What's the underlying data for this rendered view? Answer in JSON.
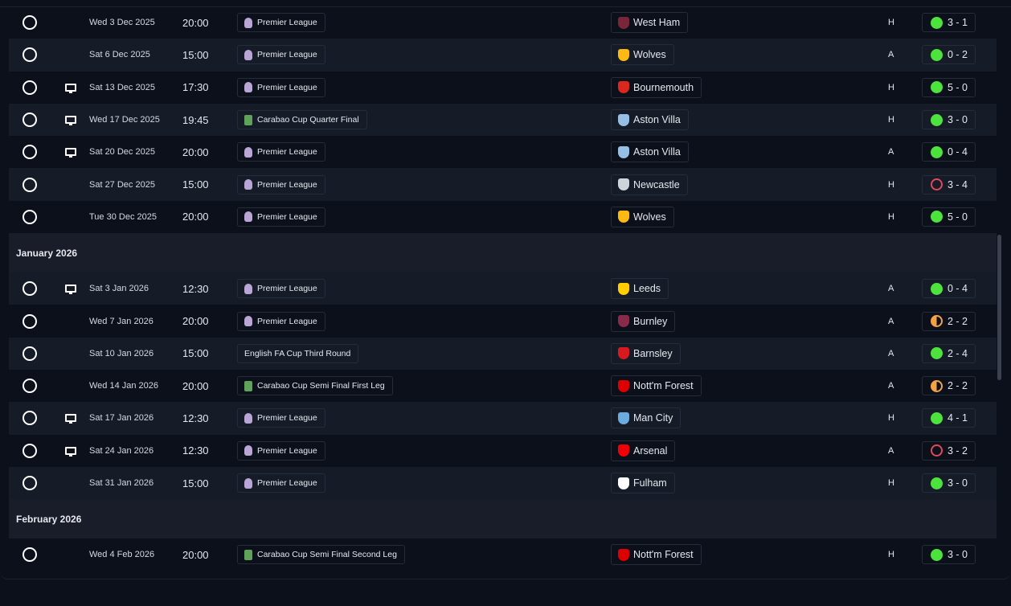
{
  "sections": [
    {
      "title": "",
      "matches": [
        {
          "date": "Wed 3 Dec 2025",
          "time": "20:00",
          "competition": "Premier League",
          "comp_icon": "premier-league",
          "tv": false,
          "opponent": "West Ham",
          "crest_color": "#7a263a",
          "venue": "H",
          "result": "W",
          "score": "3 - 1"
        },
        {
          "date": "Sat 6 Dec 2025",
          "time": "15:00",
          "competition": "Premier League",
          "comp_icon": "premier-league",
          "tv": false,
          "opponent": "Wolves",
          "crest_color": "#fdb913",
          "venue": "A",
          "result": "W",
          "score": "0 - 2"
        },
        {
          "date": "Sat 13 Dec 2025",
          "time": "17:30",
          "competition": "Premier League",
          "comp_icon": "premier-league",
          "tv": true,
          "opponent": "Bournemouth",
          "crest_color": "#da291c",
          "venue": "H",
          "result": "W",
          "score": "5 - 0"
        },
        {
          "date": "Wed 17 Dec 2025",
          "time": "19:45",
          "competition": "Carabao Cup Quarter Final",
          "comp_icon": "carabao-cup",
          "tv": true,
          "opponent": "Aston Villa",
          "crest_color": "#95bfe5",
          "venue": "H",
          "result": "W",
          "score": "3 - 0"
        },
        {
          "date": "Sat 20 Dec 2025",
          "time": "20:00",
          "competition": "Premier League",
          "comp_icon": "premier-league",
          "tv": true,
          "opponent": "Aston Villa",
          "crest_color": "#95bfe5",
          "venue": "A",
          "result": "W",
          "score": "0 - 4"
        },
        {
          "date": "Sat 27 Dec 2025",
          "time": "15:00",
          "competition": "Premier League",
          "comp_icon": "premier-league",
          "tv": false,
          "opponent": "Newcastle",
          "crest_color": "#cfd3da",
          "venue": "H",
          "result": "L",
          "score": "3 - 4"
        },
        {
          "date": "Tue 30 Dec 2025",
          "time": "20:00",
          "competition": "Premier League",
          "comp_icon": "premier-league",
          "tv": false,
          "opponent": "Wolves",
          "crest_color": "#fdb913",
          "venue": "H",
          "result": "W",
          "score": "5 - 0"
        }
      ]
    },
    {
      "title": "January 2026",
      "matches": [
        {
          "date": "Sat 3 Jan 2026",
          "time": "12:30",
          "competition": "Premier League",
          "comp_icon": "premier-league",
          "tv": true,
          "opponent": "Leeds",
          "crest_color": "#ffcd00",
          "venue": "A",
          "result": "W",
          "score": "0 - 4"
        },
        {
          "date": "Wed 7 Jan 2026",
          "time": "20:00",
          "competition": "Premier League",
          "comp_icon": "premier-league",
          "tv": false,
          "opponent": "Burnley",
          "crest_color": "#8a2a4b",
          "venue": "A",
          "result": "D",
          "score": "2 - 2"
        },
        {
          "date": "Sat 10 Jan 2026",
          "time": "15:00",
          "competition": "English FA Cup Third Round",
          "comp_icon": "",
          "tv": false,
          "opponent": "Barnsley",
          "crest_color": "#d71920",
          "venue": "A",
          "result": "W",
          "score": "2 - 4"
        },
        {
          "date": "Wed 14 Jan 2026",
          "time": "20:00",
          "competition": "Carabao Cup Semi Final First Leg",
          "comp_icon": "carabao-cup",
          "tv": false,
          "opponent": "Nott'm Forest",
          "crest_color": "#dd0000",
          "venue": "A",
          "result": "D",
          "score": "2 - 2"
        },
        {
          "date": "Sat 17 Jan 2026",
          "time": "12:30",
          "competition": "Premier League",
          "comp_icon": "premier-league",
          "tv": true,
          "opponent": "Man City",
          "crest_color": "#6cabdd",
          "venue": "H",
          "result": "W",
          "score": "4 - 1"
        },
        {
          "date": "Sat 24 Jan 2026",
          "time": "12:30",
          "competition": "Premier League",
          "comp_icon": "premier-league",
          "tv": true,
          "opponent": "Arsenal",
          "crest_color": "#ef0107",
          "venue": "A",
          "result": "L",
          "score": "3 - 2"
        },
        {
          "date": "Sat 31 Jan 2026",
          "time": "15:00",
          "competition": "Premier League",
          "comp_icon": "premier-league",
          "tv": false,
          "opponent": "Fulham",
          "crest_color": "#ffffff",
          "venue": "H",
          "result": "W",
          "score": "3 - 0"
        }
      ]
    },
    {
      "title": "February 2026",
      "matches": [
        {
          "date": "Wed 4 Feb 2026",
          "time": "20:00",
          "competition": "Carabao Cup Semi Final Second Leg",
          "comp_icon": "carabao-cup",
          "tv": false,
          "opponent": "Nott'm Forest",
          "crest_color": "#dd0000",
          "venue": "H",
          "result": "W",
          "score": "3 - 0"
        }
      ]
    }
  ],
  "colors": {
    "win": "#4ee23f",
    "draw": "#f4a24a",
    "loss": "#e0495b",
    "background": "#0b101b",
    "row_alt": "#161c27"
  }
}
